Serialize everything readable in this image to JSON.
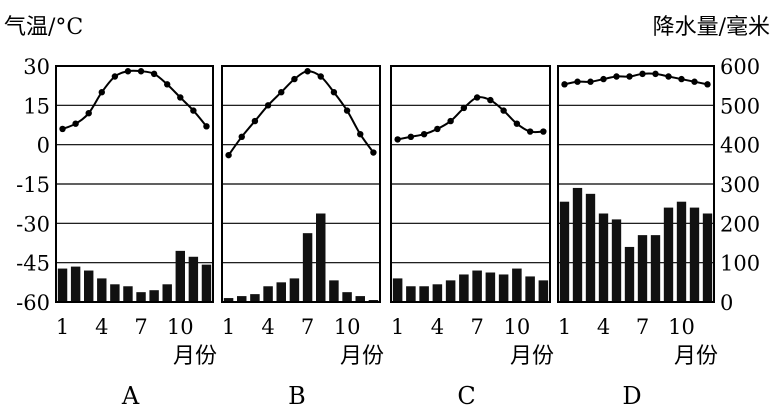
{
  "chart_data": {
    "type": "bar+line",
    "left_axis_title": "气温/°C",
    "right_axis_title": "降水量/毫米",
    "left_ticks": [
      "30",
      "15",
      "0",
      "-15",
      "-30",
      "-45",
      "-60"
    ],
    "right_ticks": [
      "600",
      "500",
      "400",
      "300",
      "200",
      "100",
      "0"
    ],
    "temp_range": [
      -60,
      30
    ],
    "precip_range": [
      0,
      600
    ],
    "grid": true,
    "x_ticks": [
      "1",
      "4",
      "7",
      "10"
    ],
    "x_tick_months": [
      1,
      4,
      7,
      10
    ],
    "xlabel": "月份",
    "months": [
      1,
      2,
      3,
      4,
      5,
      6,
      7,
      8,
      9,
      10,
      11,
      12
    ],
    "panels": [
      {
        "label": "A",
        "temperature": [
          6,
          8,
          12,
          20,
          26,
          28,
          28,
          27,
          23,
          18,
          13,
          7
        ],
        "precipitation": [
          85,
          90,
          80,
          60,
          45,
          40,
          25,
          30,
          45,
          130,
          115,
          95
        ]
      },
      {
        "label": "B",
        "temperature": [
          -4,
          3,
          9,
          15,
          20,
          25,
          28,
          26,
          20,
          13,
          4,
          -3
        ],
        "precipitation": [
          10,
          15,
          20,
          40,
          50,
          60,
          175,
          225,
          55,
          25,
          15,
          5
        ]
      },
      {
        "label": "C",
        "temperature": [
          2,
          3,
          4,
          6,
          9,
          14,
          18,
          17,
          13,
          8,
          5,
          5
        ],
        "precipitation": [
          60,
          40,
          40,
          45,
          55,
          70,
          80,
          75,
          70,
          85,
          65,
          55
        ]
      },
      {
        "label": "D",
        "temperature": [
          23,
          24,
          24,
          25,
          26,
          26,
          27,
          27,
          26,
          25,
          24,
          23
        ],
        "precipitation": [
          255,
          290,
          275,
          225,
          210,
          140,
          170,
          170,
          240,
          255,
          240,
          225
        ]
      }
    ]
  }
}
